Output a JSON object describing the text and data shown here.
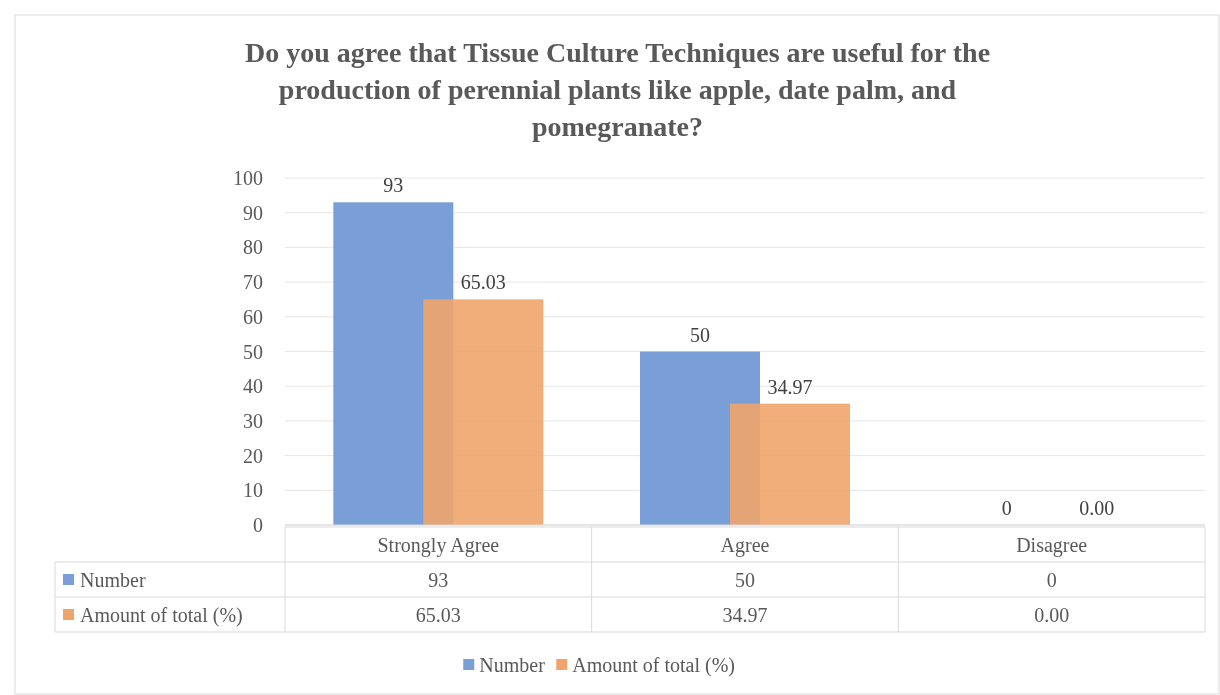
{
  "chart_data": {
    "type": "bar",
    "title": "Do you agree that Tissue Culture Techniques are useful for the production of perennial plants like apple, date palm, and pomegranate?",
    "categories": [
      "Strongly Agree",
      "Agree",
      "Disagree"
    ],
    "series": [
      {
        "name": "Number",
        "color": "#7a9fd8",
        "values": [
          93,
          50,
          0
        ],
        "value_labels": [
          "93",
          "50",
          "0"
        ]
      },
      {
        "name": "Amount of total (%)",
        "color": "#f0a46c",
        "values": [
          65.03,
          34.97,
          0
        ],
        "value_labels": [
          "65.03",
          "34.97",
          "0.00"
        ]
      }
    ],
    "ylim": [
      0,
      100
    ],
    "yticks": [
      0,
      10,
      20,
      30,
      40,
      50,
      60,
      70,
      80,
      90,
      100
    ],
    "grid": "y",
    "legend": "bottom"
  }
}
